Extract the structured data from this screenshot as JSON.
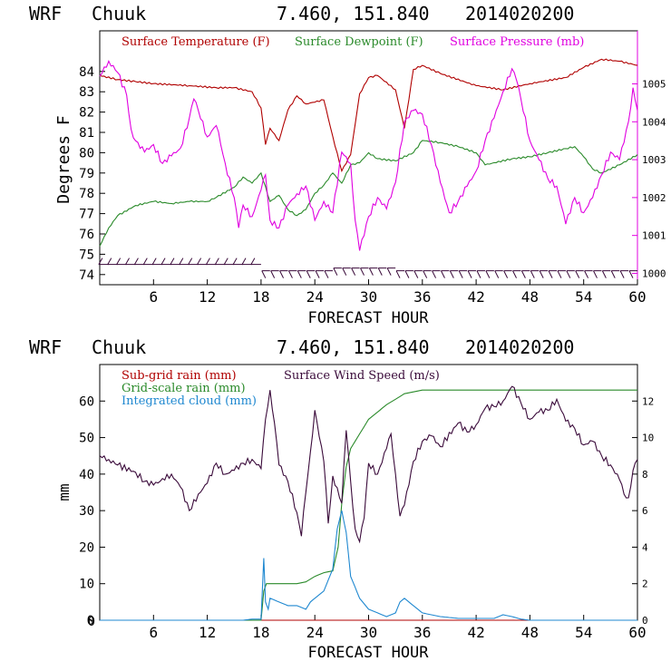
{
  "chart_data": [
    {
      "type": "line",
      "header": {
        "model": "WRF",
        "station": "Chuuk",
        "coords": "7.460, 151.840",
        "run": "2014020200"
      },
      "xlabel": "FORECAST HOUR",
      "ylabel": "Degrees F",
      "xlim": [
        0,
        60
      ],
      "ylim": [
        73.5,
        86.0
      ],
      "y2lim": [
        999.7,
        1006.4
      ],
      "x_ticks": [
        6,
        12,
        18,
        24,
        30,
        36,
        42,
        48,
        54,
        60
      ],
      "y_ticks": [
        74,
        75,
        76,
        77,
        78,
        79,
        80,
        81,
        82,
        83,
        84
      ],
      "y2_ticks": [
        1000,
        1001,
        1002,
        1003,
        1004,
        1005
      ],
      "series": [
        {
          "name": "Surface Temperature (F)",
          "color": "#b00000",
          "axis": "left",
          "x": [
            0,
            2,
            4,
            6,
            10,
            13,
            15,
            17,
            18,
            18.5,
            19,
            20,
            21,
            22,
            23,
            25,
            26,
            27,
            28,
            29,
            30,
            31,
            33,
            34,
            35,
            36,
            38,
            42,
            45,
            48,
            52,
            54,
            56,
            58,
            60
          ],
          "values": [
            83.8,
            83.6,
            83.5,
            83.4,
            83.3,
            83.2,
            83.2,
            83.0,
            82.2,
            80.4,
            81.2,
            80.6,
            82.1,
            82.8,
            82.4,
            82.6,
            80.8,
            79.1,
            79.9,
            82.9,
            83.7,
            83.8,
            83.1,
            81.2,
            84.1,
            84.3,
            83.9,
            83.3,
            83.1,
            83.4,
            83.7,
            84.2,
            84.6,
            84.5,
            84.3
          ]
        },
        {
          "name": "Surface Dewpoint (F)",
          "color": "#2a8a2a",
          "axis": "left",
          "x": [
            0,
            1,
            2,
            4,
            6,
            8,
            10,
            12,
            13,
            15,
            16,
            17,
            18,
            19,
            20,
            21,
            22,
            23,
            24,
            25,
            26,
            27,
            28,
            29,
            30,
            31,
            33,
            35,
            36,
            38,
            40,
            42,
            43,
            46,
            48,
            50,
            52,
            53,
            54,
            55,
            56,
            58,
            60
          ],
          "values": [
            75.4,
            76.3,
            76.9,
            77.4,
            77.6,
            77.5,
            77.6,
            77.6,
            77.8,
            78.3,
            78.8,
            78.5,
            79.0,
            77.6,
            77.9,
            77.2,
            76.9,
            77.2,
            78.0,
            78.4,
            79.0,
            78.5,
            79.4,
            79.5,
            80.0,
            79.7,
            79.6,
            80.0,
            80.6,
            80.5,
            80.3,
            80.0,
            79.4,
            79.7,
            79.8,
            80.0,
            80.2,
            80.3,
            79.8,
            79.2,
            79.0,
            79.4,
            79.9
          ]
        },
        {
          "name": "Surface Pressure (mb)",
          "color": "#e000e0",
          "axis": "right",
          "x": [
            0,
            1,
            2,
            3,
            3.5,
            4,
            5,
            6,
            7,
            8,
            9,
            10,
            10.5,
            11,
            12,
            13,
            13.5,
            14,
            15,
            15.5,
            16,
            17,
            18,
            18.5,
            19,
            20,
            21,
            22,
            23,
            24,
            25,
            26,
            27,
            28,
            28.5,
            29,
            30,
            31,
            32,
            33,
            34,
            35,
            36,
            37,
            38,
            39,
            40,
            41,
            42,
            43,
            44,
            45,
            46,
            46.5,
            47,
            48,
            49,
            50,
            51,
            52,
            53,
            54,
            55,
            56,
            57,
            58,
            59,
            59.5,
            60
          ],
          "values": [
            1005.2,
            1005.6,
            1005.3,
            1004.7,
            1003.8,
            1003.5,
            1003.2,
            1003.4,
            1002.9,
            1003.1,
            1003.3,
            1004.1,
            1004.6,
            1004.3,
            1003.6,
            1003.9,
            1003.4,
            1002.9,
            1002.0,
            1001.2,
            1001.8,
            1001.5,
            1002.2,
            1002.6,
            1001.4,
            1001.2,
            1001.8,
            1002.1,
            1002.3,
            1001.4,
            1001.9,
            1001.6,
            1003.2,
            1002.9,
            1001.4,
            1000.6,
            1001.5,
            1002.0,
            1001.7,
            1002.4,
            1004.0,
            1004.3,
            1004.2,
            1003.4,
            1002.4,
            1001.6,
            1001.9,
            1002.3,
            1002.7,
            1003.5,
            1004.1,
            1004.8,
            1005.4,
            1005.1,
            1004.6,
            1003.5,
            1003.0,
            1002.5,
            1002.3,
            1001.3,
            1002.0,
            1001.6,
            1002.0,
            1002.6,
            1003.2,
            1003.0,
            1004.0,
            1004.9,
            1004.3
          ]
        }
      ],
      "wind_barbs": {
        "count": 60,
        "base_level_f": 74.5,
        "description": "Surface wind barbs along bottom of panel"
      }
    },
    {
      "type": "line",
      "header": {
        "model": "WRF",
        "station": "Chuuk",
        "coords": "7.460, 151.840",
        "run": "2014020200"
      },
      "xlabel": "FORECAST HOUR",
      "ylabel": "mm",
      "xlim": [
        0,
        60
      ],
      "ylim": [
        0,
        70
      ],
      "y2lim": [
        0,
        14
      ],
      "x_ticks": [
        6,
        12,
        18,
        24,
        30,
        36,
        42,
        48,
        54,
        60
      ],
      "y_ticks": [
        0,
        10,
        20,
        30,
        40,
        50,
        60
      ],
      "y2_ticks": [
        0,
        2,
        4,
        6,
        8,
        10,
        12
      ],
      "x_zero_label": "0",
      "series": [
        {
          "name": "Sub-grid rain (mm)",
          "color": "#b00000",
          "axis": "left",
          "x": [
            0,
            60
          ],
          "values": [
            0,
            0
          ]
        },
        {
          "name": "Grid-scale rain (mm)",
          "color": "#2a8a2a",
          "axis": "left",
          "x": [
            0,
            18,
            18.3,
            18.6,
            22,
            23,
            24,
            25,
            26,
            26.6,
            27,
            27.5,
            28,
            29,
            30,
            31,
            32,
            34,
            36,
            40,
            44,
            46,
            50,
            55,
            60
          ],
          "values": [
            0,
            0,
            8,
            10,
            10,
            10.5,
            12,
            13,
            13.5,
            20,
            32,
            42,
            47,
            51,
            55,
            57,
            59,
            62,
            63,
            63,
            63,
            63,
            63,
            63,
            63
          ]
        },
        {
          "name": "Integrated cloud (mm)",
          "color": "#1f88d0",
          "axis": "left",
          "x": [
            0,
            16,
            17,
            18,
            18.3,
            18.5,
            18.8,
            19,
            20,
            21,
            22,
            23,
            23.5,
            24,
            25,
            26,
            26.5,
            27,
            27.5,
            28,
            29,
            30,
            31,
            32,
            33,
            33.5,
            34,
            35,
            36,
            38,
            40,
            42,
            44,
            45,
            46,
            47,
            48,
            50,
            52,
            60
          ],
          "values": [
            0,
            0,
            0.3,
            0.3,
            17,
            5,
            3,
            6,
            5,
            4,
            4,
            3,
            5,
            6,
            8,
            14,
            25,
            30,
            24,
            12,
            6,
            3,
            2,
            1,
            2,
            5,
            6,
            4,
            2,
            1,
            0.5,
            0.5,
            0.5,
            1.5,
            1,
            0.3,
            0,
            0,
            0,
            0
          ]
        },
        {
          "name": "Surface Wind Speed (m/s)",
          "color": "#3a0a3a",
          "axis": "right",
          "x": [
            0,
            1,
            2,
            4,
            5,
            6,
            8,
            9,
            10,
            11,
            12,
            13,
            14,
            15,
            16,
            17,
            18,
            18.5,
            19,
            19.5,
            20,
            21,
            22,
            22.5,
            23,
            23.5,
            24,
            25,
            25.5,
            26,
            27,
            27.5,
            28,
            28.5,
            29,
            29.5,
            30,
            31,
            32,
            32.5,
            33,
            33.5,
            34,
            35,
            36,
            37,
            38,
            40,
            41,
            42,
            43,
            44,
            45,
            46,
            47,
            48,
            49,
            50,
            51,
            52,
            53,
            54,
            55,
            56,
            57,
            58,
            58.5,
            59,
            59.5,
            60
          ],
          "values": [
            9.0,
            8.8,
            8.5,
            8.1,
            7.6,
            7.4,
            8.0,
            7.3,
            6.0,
            6.9,
            7.5,
            8.6,
            8.0,
            8.2,
            8.6,
            8.8,
            8.3,
            11.0,
            12.6,
            10.8,
            8.5,
            7.6,
            5.9,
            4.6,
            7.0,
            9.2,
            11.5,
            8.7,
            5.3,
            7.9,
            6.4,
            10.4,
            7.6,
            5.0,
            4.3,
            5.6,
            8.6,
            8.0,
            9.4,
            10.2,
            8.0,
            5.7,
            6.3,
            8.7,
            9.8,
            10.1,
            9.5,
            10.8,
            10.3,
            10.7,
            11.6,
            11.7,
            12.0,
            12.8,
            11.9,
            11.0,
            11.4,
            11.5,
            12.1,
            10.9,
            10.5,
            9.6,
            9.8,
            9.0,
            8.5,
            7.7,
            6.9,
            6.7,
            8.2,
            8.8
          ]
        }
      ]
    }
  ]
}
